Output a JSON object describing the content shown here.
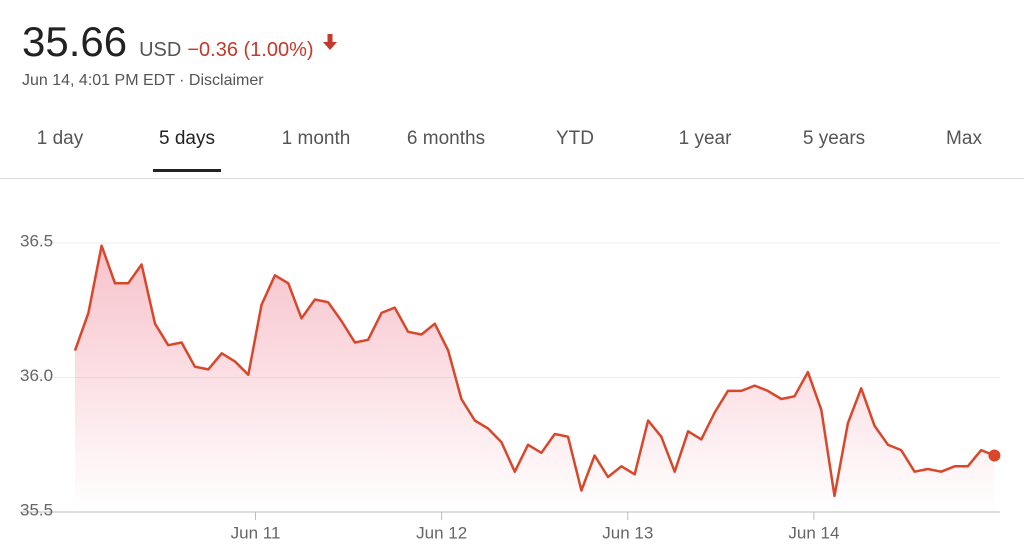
{
  "header": {
    "price": "35.66",
    "currency": "USD",
    "change": "−0.36 (1.00%)",
    "timestamp": "Jun 14, 4:01 PM EDT",
    "separator": "·",
    "disclaimer": "Disclaimer"
  },
  "tabs": {
    "items": [
      "1 day",
      "5 days",
      "1 month",
      "6 months",
      "YTD",
      "1 year",
      "5 years",
      "Max"
    ],
    "selected": 1
  },
  "chart_data": {
    "type": "line",
    "x": [
      10.03,
      10.102,
      10.173,
      10.245,
      10.316,
      10.388,
      10.46,
      10.531,
      10.603,
      10.674,
      10.746,
      10.818,
      10.889,
      10.961,
      11.032,
      11.104,
      11.176,
      11.247,
      11.319,
      11.39,
      11.462,
      11.534,
      11.605,
      11.677,
      11.748,
      11.82,
      11.892,
      11.963,
      12.035,
      12.106,
      12.178,
      12.25,
      12.321,
      12.393,
      12.464,
      12.536,
      12.608,
      12.679,
      12.751,
      12.822,
      12.894,
      12.966,
      13.037,
      13.109,
      13.18,
      13.252,
      13.324,
      13.395,
      13.467,
      13.538,
      13.61,
      13.682,
      13.753,
      13.825,
      13.896,
      13.968,
      14.04,
      14.111,
      14.183,
      14.254,
      14.326,
      14.398,
      14.469,
      14.541,
      14.612,
      14.684,
      14.756,
      14.827,
      14.899,
      14.97
    ],
    "values": [
      36.1,
      36.24,
      36.49,
      36.35,
      36.35,
      36.42,
      36.2,
      36.12,
      36.13,
      36.04,
      36.03,
      36.09,
      36.06,
      36.01,
      36.27,
      36.38,
      36.35,
      36.22,
      36.29,
      36.28,
      36.21,
      36.13,
      36.14,
      36.24,
      36.26,
      36.17,
      36.16,
      36.2,
      36.1,
      35.92,
      35.84,
      35.81,
      35.76,
      35.65,
      35.75,
      35.72,
      35.79,
      35.78,
      35.58,
      35.71,
      35.63,
      35.67,
      35.64,
      35.84,
      35.78,
      35.65,
      35.8,
      35.77,
      35.87,
      35.95,
      35.95,
      35.97,
      35.95,
      35.92,
      35.93,
      36.02,
      35.88,
      35.56,
      35.83,
      35.96,
      35.82,
      35.75,
      35.73,
      35.65,
      35.66,
      35.65,
      35.67,
      35.67,
      35.73,
      35.71
    ],
    "color": "#d9472b",
    "xlim": [
      10.03,
      15.0
    ],
    "xticks": [
      {
        "value": 11,
        "label": "Jun 11"
      },
      {
        "value": 12,
        "label": "Jun 12"
      },
      {
        "value": 13,
        "label": "Jun 13"
      },
      {
        "value": 14,
        "label": "Jun 14"
      }
    ],
    "ylim": [
      35.5,
      36.5
    ],
    "yticks": [
      36.5,
      {
        "value": 36.0,
        "label": "36.0"
      },
      35.5
    ],
    "grid": true
  }
}
